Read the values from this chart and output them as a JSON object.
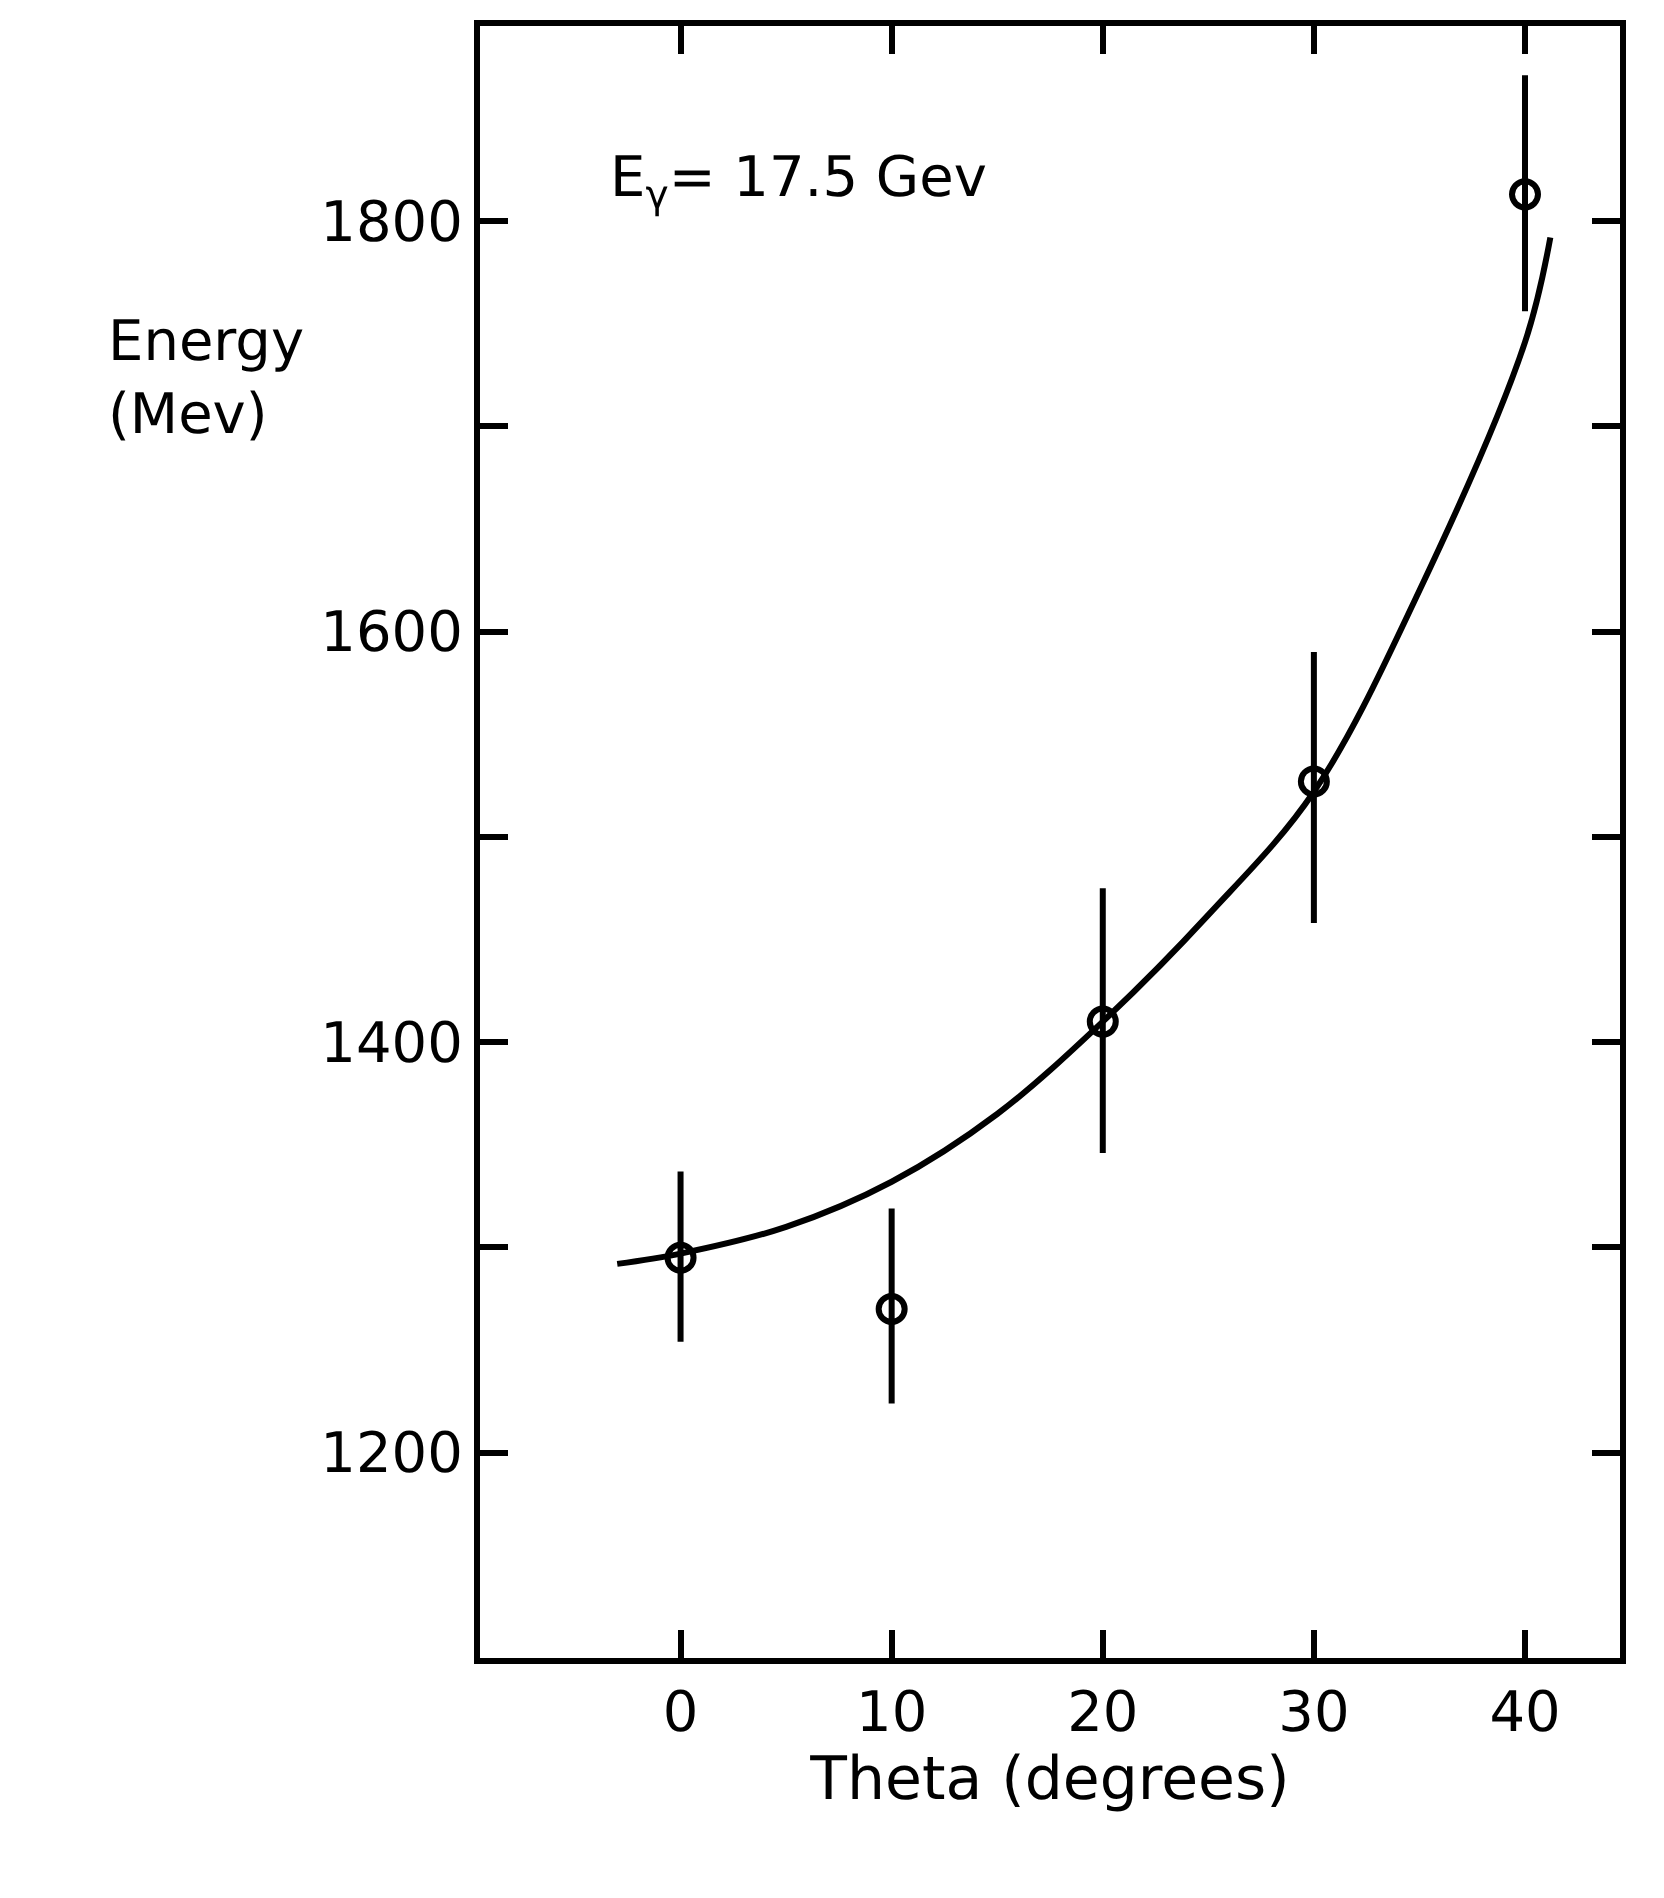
{
  "chart_data": {
    "type": "scatter",
    "xlabel": "Theta (degrees)",
    "ylabel": "Energy\n(Mev)",
    "annotations": [
      "E$_{γ}$= 17.5 Gev"
    ],
    "xlim": [
      -9.5,
      44.5
    ],
    "xticks": [
      0,
      10,
      20,
      30,
      40
    ],
    "ylim": [
      1100,
      1895
    ],
    "yticks": [
      {
        "value": 1200,
        "label": "1200"
      },
      {
        "value": 1300,
        "label": null
      },
      {
        "value": 1400,
        "label": "1400"
      },
      {
        "value": 1500,
        "label": null
      },
      {
        "value": 1600,
        "label": "1600"
      },
      {
        "value": 1700,
        "label": null
      },
      {
        "value": 1800,
        "label": "1800"
      }
    ],
    "series": [
      {
        "color": "#000000",
        "marker": "circle",
        "x": [
          0,
          10,
          20,
          30,
          40
        ],
        "values": [
          1295,
          1270,
          1410,
          1527,
          1813
        ],
        "errors": [
          [
            1254,
            1337
          ],
          [
            1224,
            1319
          ],
          [
            1346,
            1475
          ],
          [
            1458,
            1590
          ],
          [
            1756,
            1871
          ]
        ]
      },
      {
        "type": "line",
        "color": "#000000",
        "marker": "none",
        "line_style": "solid",
        "x": [
          -3,
          0,
          5,
          10,
          15,
          20,
          25,
          30,
          35,
          40,
          41.2
        ],
        "values": [
          1292,
          1297,
          1310,
          1332,
          1365,
          1410,
          1462,
          1522,
          1620,
          1741,
          1792
        ]
      }
    ]
  }
}
